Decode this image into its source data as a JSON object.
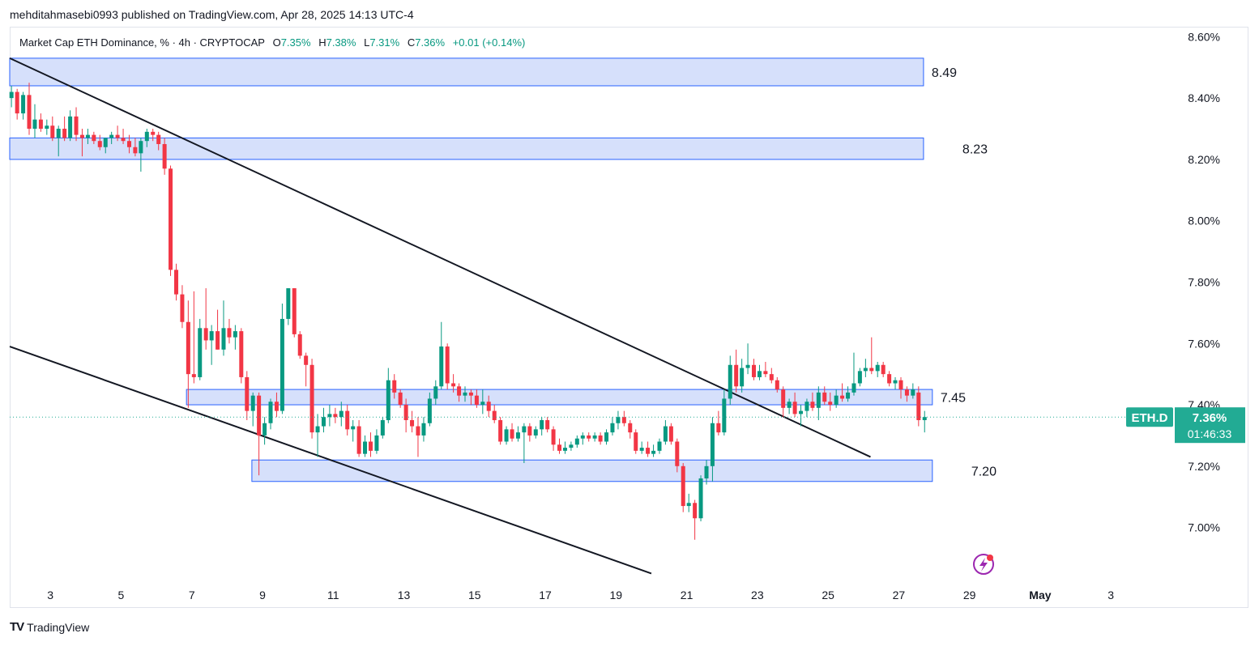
{
  "header": {
    "published": "mehditahmasebi0993 published on TradingView.com, Apr 28, 2025 14:13 UTC-4"
  },
  "legend": {
    "title": "Market Cap ETH Dominance, % · 4h · CRYPTOCAP",
    "o_label": "O",
    "o_value": "7.35%",
    "h_label": "H",
    "h_value": "7.38%",
    "l_label": "L",
    "l_value": "7.31%",
    "c_label": "C",
    "c_value": "7.36%",
    "change": "+0.01 (+0.14%)"
  },
  "price_tag": {
    "symbol": "ETH.D",
    "price": "7.36%",
    "countdown": "01:46:33"
  },
  "footer": {
    "brand": "TradingView",
    "logo": "TV"
  },
  "colors": {
    "up": "#089981",
    "down": "#f23645",
    "zone_fill": "#d6e0fb",
    "zone_border": "#2962ff",
    "trendline": "#131722",
    "tag": "#22ab94"
  },
  "icons": {
    "bottom_right": "lightning-icon"
  },
  "chart_data": {
    "type": "candlestick",
    "title": "Market Cap ETH Dominance, % · 4h · CRYPTOCAP",
    "timeframe": "4h",
    "y_unit": "%",
    "ylim": [
      6.83,
      8.63
    ],
    "y_ticks": [
      "8.60%",
      "8.40%",
      "8.20%",
      "8.00%",
      "7.80%",
      "7.60%",
      "7.40%",
      "7.20%",
      "7.00%"
    ],
    "y_tick_values": [
      8.6,
      8.4,
      8.2,
      8.0,
      7.8,
      7.6,
      7.4,
      7.2,
      7.0
    ],
    "x_ticks": [
      "3",
      "5",
      "7",
      "9",
      "11",
      "13",
      "15",
      "17",
      "19",
      "21",
      "23",
      "25",
      "27",
      "29",
      "May",
      "3"
    ],
    "x_tick_days": [
      3,
      5,
      7,
      9,
      11,
      13,
      15,
      17,
      19,
      21,
      23,
      25,
      27,
      29,
      31,
      33
    ],
    "xlim_days": [
      1.85,
      34.6
    ],
    "zones": [
      {
        "label": "8.49",
        "top": 8.53,
        "bottom": 8.44,
        "x_start_day": 1.85,
        "x_end_day": 27.7
      },
      {
        "label": "8.23",
        "top": 8.27,
        "bottom": 8.2,
        "x_start_day": 1.85,
        "x_end_day": 27.7
      },
      {
        "label": "7.45",
        "top": 7.45,
        "bottom": 7.4,
        "x_start_day": 6.85,
        "x_end_day": 27.95
      },
      {
        "label": "7.20",
        "top": 7.22,
        "bottom": 7.15,
        "x_start_day": 8.7,
        "x_end_day": 27.95
      }
    ],
    "trendlines": [
      {
        "start_day": 1.85,
        "start_value": 8.53,
        "end_day": 26.2,
        "end_value": 7.23
      },
      {
        "start_day": 1.85,
        "start_value": 7.59,
        "end_day": 20.0,
        "end_value": 6.85
      }
    ],
    "current_price": 7.36,
    "candles": [
      {
        "d": 1.9,
        "o": 8.4,
        "h": 8.44,
        "l": 8.37,
        "c": 8.42
      },
      {
        "d": 2.06,
        "o": 8.42,
        "h": 8.43,
        "l": 8.33,
        "c": 8.35
      },
      {
        "d": 2.23,
        "o": 8.35,
        "h": 8.42,
        "l": 8.33,
        "c": 8.41
      },
      {
        "d": 2.4,
        "o": 8.41,
        "h": 8.45,
        "l": 8.28,
        "c": 8.3
      },
      {
        "d": 2.56,
        "o": 8.3,
        "h": 8.38,
        "l": 8.27,
        "c": 8.33
      },
      {
        "d": 2.73,
        "o": 8.33,
        "h": 8.35,
        "l": 8.29,
        "c": 8.3
      },
      {
        "d": 2.9,
        "o": 8.3,
        "h": 8.33,
        "l": 8.28,
        "c": 8.31
      },
      {
        "d": 3.06,
        "o": 8.31,
        "h": 8.34,
        "l": 8.26,
        "c": 8.27
      },
      {
        "d": 3.23,
        "o": 8.27,
        "h": 8.31,
        "l": 8.21,
        "c": 8.3
      },
      {
        "d": 3.4,
        "o": 8.3,
        "h": 8.34,
        "l": 8.26,
        "c": 8.27
      },
      {
        "d": 3.56,
        "o": 8.27,
        "h": 8.36,
        "l": 8.26,
        "c": 8.34
      },
      {
        "d": 3.73,
        "o": 8.34,
        "h": 8.37,
        "l": 8.26,
        "c": 8.28
      },
      {
        "d": 3.9,
        "o": 8.28,
        "h": 8.3,
        "l": 8.21,
        "c": 8.27
      },
      {
        "d": 4.06,
        "o": 8.27,
        "h": 8.3,
        "l": 8.25,
        "c": 8.28
      },
      {
        "d": 4.23,
        "o": 8.28,
        "h": 8.29,
        "l": 8.25,
        "c": 8.26
      },
      {
        "d": 4.4,
        "o": 8.26,
        "h": 8.28,
        "l": 8.23,
        "c": 8.24
      },
      {
        "d": 4.56,
        "o": 8.24,
        "h": 8.27,
        "l": 8.22,
        "c": 8.27
      },
      {
        "d": 4.73,
        "o": 8.27,
        "h": 8.29,
        "l": 8.25,
        "c": 8.28
      },
      {
        "d": 4.9,
        "o": 8.28,
        "h": 8.31,
        "l": 8.26,
        "c": 8.27
      },
      {
        "d": 5.06,
        "o": 8.27,
        "h": 8.3,
        "l": 8.25,
        "c": 8.26
      },
      {
        "d": 5.23,
        "o": 8.26,
        "h": 8.28,
        "l": 8.22,
        "c": 8.24
      },
      {
        "d": 5.4,
        "o": 8.24,
        "h": 8.27,
        "l": 8.21,
        "c": 8.22
      },
      {
        "d": 5.56,
        "o": 8.22,
        "h": 8.27,
        "l": 8.16,
        "c": 8.26
      },
      {
        "d": 5.73,
        "o": 8.26,
        "h": 8.3,
        "l": 8.24,
        "c": 8.29
      },
      {
        "d": 5.9,
        "o": 8.29,
        "h": 8.3,
        "l": 8.26,
        "c": 8.28
      },
      {
        "d": 6.06,
        "o": 8.28,
        "h": 8.29,
        "l": 8.23,
        "c": 8.25
      },
      {
        "d": 6.23,
        "o": 8.25,
        "h": 8.27,
        "l": 8.15,
        "c": 8.17
      },
      {
        "d": 6.4,
        "o": 8.17,
        "h": 8.18,
        "l": 7.82,
        "c": 7.84
      },
      {
        "d": 6.56,
        "o": 7.84,
        "h": 7.86,
        "l": 7.74,
        "c": 7.76
      },
      {
        "d": 6.73,
        "o": 7.76,
        "h": 7.79,
        "l": 7.65,
        "c": 7.67
      },
      {
        "d": 6.9,
        "o": 7.67,
        "h": 7.74,
        "l": 7.39,
        "c": 7.5
      },
      {
        "d": 7.06,
        "o": 7.5,
        "h": 7.77,
        "l": 7.47,
        "c": 7.49
      },
      {
        "d": 7.23,
        "o": 7.49,
        "h": 7.68,
        "l": 7.48,
        "c": 7.65
      },
      {
        "d": 7.4,
        "o": 7.65,
        "h": 7.78,
        "l": 7.58,
        "c": 7.61
      },
      {
        "d": 7.56,
        "o": 7.61,
        "h": 7.66,
        "l": 7.53,
        "c": 7.64
      },
      {
        "d": 7.73,
        "o": 7.64,
        "h": 7.71,
        "l": 7.58,
        "c": 7.58
      },
      {
        "d": 7.9,
        "o": 7.58,
        "h": 7.74,
        "l": 7.56,
        "c": 7.65
      },
      {
        "d": 8.06,
        "o": 7.65,
        "h": 7.68,
        "l": 7.6,
        "c": 7.62
      },
      {
        "d": 8.23,
        "o": 7.62,
        "h": 7.66,
        "l": 7.58,
        "c": 7.64
      },
      {
        "d": 8.4,
        "o": 7.64,
        "h": 7.65,
        "l": 7.47,
        "c": 7.49
      },
      {
        "d": 8.56,
        "o": 7.49,
        "h": 7.51,
        "l": 7.35,
        "c": 7.38
      },
      {
        "d": 8.73,
        "o": 7.38,
        "h": 7.44,
        "l": 7.33,
        "c": 7.43
      },
      {
        "d": 8.9,
        "o": 7.43,
        "h": 7.44,
        "l": 7.17,
        "c": 7.3
      },
      {
        "d": 9.06,
        "o": 7.3,
        "h": 7.36,
        "l": 7.27,
        "c": 7.34
      },
      {
        "d": 9.23,
        "o": 7.34,
        "h": 7.42,
        "l": 7.32,
        "c": 7.41
      },
      {
        "d": 9.4,
        "o": 7.41,
        "h": 7.44,
        "l": 7.36,
        "c": 7.38
      },
      {
        "d": 9.56,
        "o": 7.38,
        "h": 7.73,
        "l": 7.37,
        "c": 7.68
      },
      {
        "d": 9.73,
        "o": 7.68,
        "h": 7.78,
        "l": 7.66,
        "c": 7.78
      },
      {
        "d": 9.9,
        "o": 7.78,
        "h": 7.78,
        "l": 7.62,
        "c": 7.63
      },
      {
        "d": 10.06,
        "o": 7.63,
        "h": 7.64,
        "l": 7.55,
        "c": 7.56
      },
      {
        "d": 10.23,
        "o": 7.56,
        "h": 7.57,
        "l": 7.46,
        "c": 7.53
      },
      {
        "d": 10.4,
        "o": 7.53,
        "h": 7.55,
        "l": 7.29,
        "c": 7.31
      },
      {
        "d": 10.56,
        "o": 7.31,
        "h": 7.37,
        "l": 7.23,
        "c": 7.33
      },
      {
        "d": 10.73,
        "o": 7.33,
        "h": 7.39,
        "l": 7.31,
        "c": 7.36
      },
      {
        "d": 10.9,
        "o": 7.36,
        "h": 7.4,
        "l": 7.33,
        "c": 7.37
      },
      {
        "d": 11.06,
        "o": 7.37,
        "h": 7.39,
        "l": 7.34,
        "c": 7.36
      },
      {
        "d": 11.23,
        "o": 7.36,
        "h": 7.41,
        "l": 7.33,
        "c": 7.38
      },
      {
        "d": 11.4,
        "o": 7.38,
        "h": 7.4,
        "l": 7.3,
        "c": 7.32
      },
      {
        "d": 11.56,
        "o": 7.32,
        "h": 7.35,
        "l": 7.28,
        "c": 7.33
      },
      {
        "d": 11.73,
        "o": 7.33,
        "h": 7.35,
        "l": 7.23,
        "c": 7.24
      },
      {
        "d": 11.9,
        "o": 7.24,
        "h": 7.3,
        "l": 7.23,
        "c": 7.28
      },
      {
        "d": 12.06,
        "o": 7.28,
        "h": 7.31,
        "l": 7.23,
        "c": 7.25
      },
      {
        "d": 12.23,
        "o": 7.25,
        "h": 7.32,
        "l": 7.24,
        "c": 7.3
      },
      {
        "d": 12.4,
        "o": 7.3,
        "h": 7.36,
        "l": 7.29,
        "c": 7.35
      },
      {
        "d": 12.56,
        "o": 7.35,
        "h": 7.52,
        "l": 7.34,
        "c": 7.48
      },
      {
        "d": 12.73,
        "o": 7.48,
        "h": 7.5,
        "l": 7.42,
        "c": 7.44
      },
      {
        "d": 12.9,
        "o": 7.44,
        "h": 7.45,
        "l": 7.39,
        "c": 7.4
      },
      {
        "d": 13.06,
        "o": 7.4,
        "h": 7.42,
        "l": 7.31,
        "c": 7.35
      },
      {
        "d": 13.23,
        "o": 7.35,
        "h": 7.38,
        "l": 7.31,
        "c": 7.33
      },
      {
        "d": 13.4,
        "o": 7.33,
        "h": 7.36,
        "l": 7.23,
        "c": 7.3
      },
      {
        "d": 13.56,
        "o": 7.3,
        "h": 7.36,
        "l": 7.28,
        "c": 7.34
      },
      {
        "d": 13.73,
        "o": 7.34,
        "h": 7.44,
        "l": 7.33,
        "c": 7.42
      },
      {
        "d": 13.9,
        "o": 7.42,
        "h": 7.48,
        "l": 7.4,
        "c": 7.46
      },
      {
        "d": 14.06,
        "o": 7.46,
        "h": 7.67,
        "l": 7.45,
        "c": 7.59
      },
      {
        "d": 14.23,
        "o": 7.59,
        "h": 7.6,
        "l": 7.45,
        "c": 7.47
      },
      {
        "d": 14.4,
        "o": 7.47,
        "h": 7.5,
        "l": 7.44,
        "c": 7.46
      },
      {
        "d": 14.56,
        "o": 7.46,
        "h": 7.47,
        "l": 7.41,
        "c": 7.43
      },
      {
        "d": 14.73,
        "o": 7.43,
        "h": 7.46,
        "l": 7.41,
        "c": 7.44
      },
      {
        "d": 14.9,
        "o": 7.44,
        "h": 7.45,
        "l": 7.4,
        "c": 7.43
      },
      {
        "d": 15.06,
        "o": 7.43,
        "h": 7.45,
        "l": 7.39,
        "c": 7.4
      },
      {
        "d": 15.23,
        "o": 7.4,
        "h": 7.45,
        "l": 7.37,
        "c": 7.41
      },
      {
        "d": 15.4,
        "o": 7.41,
        "h": 7.43,
        "l": 7.36,
        "c": 7.38
      },
      {
        "d": 15.56,
        "o": 7.38,
        "h": 7.4,
        "l": 7.34,
        "c": 7.35
      },
      {
        "d": 15.73,
        "o": 7.35,
        "h": 7.36,
        "l": 7.27,
        "c": 7.28
      },
      {
        "d": 15.9,
        "o": 7.28,
        "h": 7.33,
        "l": 7.27,
        "c": 7.32
      },
      {
        "d": 16.06,
        "o": 7.32,
        "h": 7.34,
        "l": 7.28,
        "c": 7.29
      },
      {
        "d": 16.23,
        "o": 7.29,
        "h": 7.33,
        "l": 7.28,
        "c": 7.31
      },
      {
        "d": 16.4,
        "o": 7.31,
        "h": 7.34,
        "l": 7.21,
        "c": 7.33
      },
      {
        "d": 16.56,
        "o": 7.33,
        "h": 7.34,
        "l": 7.28,
        "c": 7.3
      },
      {
        "d": 16.73,
        "o": 7.3,
        "h": 7.33,
        "l": 7.29,
        "c": 7.32
      },
      {
        "d": 16.9,
        "o": 7.32,
        "h": 7.36,
        "l": 7.3,
        "c": 7.35
      },
      {
        "d": 17.06,
        "o": 7.35,
        "h": 7.36,
        "l": 7.31,
        "c": 7.32
      },
      {
        "d": 17.23,
        "o": 7.32,
        "h": 7.33,
        "l": 7.25,
        "c": 7.27
      },
      {
        "d": 17.4,
        "o": 7.27,
        "h": 7.29,
        "l": 7.24,
        "c": 7.25
      },
      {
        "d": 17.56,
        "o": 7.25,
        "h": 7.28,
        "l": 7.24,
        "c": 7.26
      },
      {
        "d": 17.73,
        "o": 7.26,
        "h": 7.28,
        "l": 7.25,
        "c": 7.27
      },
      {
        "d": 17.9,
        "o": 7.27,
        "h": 7.3,
        "l": 7.26,
        "c": 7.29
      },
      {
        "d": 18.06,
        "o": 7.29,
        "h": 7.31,
        "l": 7.27,
        "c": 7.3
      },
      {
        "d": 18.23,
        "o": 7.3,
        "h": 7.31,
        "l": 7.28,
        "c": 7.29
      },
      {
        "d": 18.4,
        "o": 7.29,
        "h": 7.31,
        "l": 7.28,
        "c": 7.3
      },
      {
        "d": 18.56,
        "o": 7.3,
        "h": 7.31,
        "l": 7.27,
        "c": 7.28
      },
      {
        "d": 18.73,
        "o": 7.28,
        "h": 7.32,
        "l": 7.27,
        "c": 7.31
      },
      {
        "d": 18.9,
        "o": 7.31,
        "h": 7.36,
        "l": 7.3,
        "c": 7.34
      },
      {
        "d": 19.06,
        "o": 7.34,
        "h": 7.38,
        "l": 7.32,
        "c": 7.36
      },
      {
        "d": 19.23,
        "o": 7.36,
        "h": 7.38,
        "l": 7.33,
        "c": 7.34
      },
      {
        "d": 19.4,
        "o": 7.34,
        "h": 7.35,
        "l": 7.29,
        "c": 7.31
      },
      {
        "d": 19.56,
        "o": 7.31,
        "h": 7.32,
        "l": 7.24,
        "c": 7.25
      },
      {
        "d": 19.73,
        "o": 7.25,
        "h": 7.28,
        "l": 7.24,
        "c": 7.26
      },
      {
        "d": 19.9,
        "o": 7.26,
        "h": 7.28,
        "l": 7.23,
        "c": 7.24
      },
      {
        "d": 20.06,
        "o": 7.24,
        "h": 7.27,
        "l": 7.23,
        "c": 7.25
      },
      {
        "d": 20.23,
        "o": 7.25,
        "h": 7.29,
        "l": 7.24,
        "c": 7.28
      },
      {
        "d": 20.4,
        "o": 7.28,
        "h": 7.35,
        "l": 7.27,
        "c": 7.33
      },
      {
        "d": 20.56,
        "o": 7.33,
        "h": 7.34,
        "l": 7.27,
        "c": 7.28
      },
      {
        "d": 20.73,
        "o": 7.28,
        "h": 7.29,
        "l": 7.18,
        "c": 7.2
      },
      {
        "d": 20.9,
        "o": 7.2,
        "h": 7.21,
        "l": 7.05,
        "c": 7.07
      },
      {
        "d": 21.06,
        "o": 7.07,
        "h": 7.11,
        "l": 7.05,
        "c": 7.08
      },
      {
        "d": 21.23,
        "o": 7.08,
        "h": 7.09,
        "l": 6.96,
        "c": 7.03
      },
      {
        "d": 21.4,
        "o": 7.03,
        "h": 7.17,
        "l": 7.02,
        "c": 7.16
      },
      {
        "d": 21.56,
        "o": 7.16,
        "h": 7.22,
        "l": 7.14,
        "c": 7.2
      },
      {
        "d": 21.73,
        "o": 7.2,
        "h": 7.36,
        "l": 7.15,
        "c": 7.34
      },
      {
        "d": 21.9,
        "o": 7.34,
        "h": 7.38,
        "l": 7.3,
        "c": 7.31
      },
      {
        "d": 22.06,
        "o": 7.31,
        "h": 7.45,
        "l": 7.3,
        "c": 7.42
      },
      {
        "d": 22.23,
        "o": 7.42,
        "h": 7.56,
        "l": 7.4,
        "c": 7.53
      },
      {
        "d": 22.4,
        "o": 7.53,
        "h": 7.58,
        "l": 7.44,
        "c": 7.46
      },
      {
        "d": 22.56,
        "o": 7.46,
        "h": 7.55,
        "l": 7.44,
        "c": 7.52
      },
      {
        "d": 22.73,
        "o": 7.52,
        "h": 7.6,
        "l": 7.5,
        "c": 7.53
      },
      {
        "d": 22.9,
        "o": 7.53,
        "h": 7.55,
        "l": 7.48,
        "c": 7.49
      },
      {
        "d": 23.06,
        "o": 7.49,
        "h": 7.53,
        "l": 7.48,
        "c": 7.51
      },
      {
        "d": 23.23,
        "o": 7.51,
        "h": 7.54,
        "l": 7.49,
        "c": 7.5
      },
      {
        "d": 23.4,
        "o": 7.5,
        "h": 7.52,
        "l": 7.47,
        "c": 7.48
      },
      {
        "d": 23.56,
        "o": 7.48,
        "h": 7.49,
        "l": 7.44,
        "c": 7.45
      },
      {
        "d": 23.73,
        "o": 7.45,
        "h": 7.46,
        "l": 7.36,
        "c": 7.39
      },
      {
        "d": 23.9,
        "o": 7.39,
        "h": 7.42,
        "l": 7.37,
        "c": 7.41
      },
      {
        "d": 24.06,
        "o": 7.41,
        "h": 7.44,
        "l": 7.36,
        "c": 7.37
      },
      {
        "d": 24.23,
        "o": 7.37,
        "h": 7.4,
        "l": 7.33,
        "c": 7.38
      },
      {
        "d": 24.4,
        "o": 7.38,
        "h": 7.42,
        "l": 7.36,
        "c": 7.41
      },
      {
        "d": 24.56,
        "o": 7.41,
        "h": 7.44,
        "l": 7.38,
        "c": 7.39
      },
      {
        "d": 24.73,
        "o": 7.39,
        "h": 7.46,
        "l": 7.35,
        "c": 7.44
      },
      {
        "d": 24.9,
        "o": 7.44,
        "h": 7.46,
        "l": 7.4,
        "c": 7.41
      },
      {
        "d": 25.06,
        "o": 7.41,
        "h": 7.44,
        "l": 7.38,
        "c": 7.4
      },
      {
        "d": 25.23,
        "o": 7.4,
        "h": 7.45,
        "l": 7.39,
        "c": 7.43
      },
      {
        "d": 25.4,
        "o": 7.43,
        "h": 7.47,
        "l": 7.41,
        "c": 7.42
      },
      {
        "d": 25.56,
        "o": 7.42,
        "h": 7.46,
        "l": 7.41,
        "c": 7.44
      },
      {
        "d": 25.73,
        "o": 7.44,
        "h": 7.57,
        "l": 7.43,
        "c": 7.47
      },
      {
        "d": 25.9,
        "o": 7.47,
        "h": 7.52,
        "l": 7.46,
        "c": 7.51
      },
      {
        "d": 26.06,
        "o": 7.51,
        "h": 7.55,
        "l": 7.49,
        "c": 7.52
      },
      {
        "d": 26.23,
        "o": 7.52,
        "h": 7.62,
        "l": 7.5,
        "c": 7.51
      },
      {
        "d": 26.4,
        "o": 7.51,
        "h": 7.54,
        "l": 7.49,
        "c": 7.53
      },
      {
        "d": 26.56,
        "o": 7.53,
        "h": 7.54,
        "l": 7.49,
        "c": 7.5
      },
      {
        "d": 26.73,
        "o": 7.5,
        "h": 7.51,
        "l": 7.46,
        "c": 7.47
      },
      {
        "d": 26.9,
        "o": 7.47,
        "h": 7.49,
        "l": 7.45,
        "c": 7.48
      },
      {
        "d": 27.06,
        "o": 7.48,
        "h": 7.49,
        "l": 7.42,
        "c": 7.45
      },
      {
        "d": 27.23,
        "o": 7.45,
        "h": 7.46,
        "l": 7.41,
        "c": 7.43
      },
      {
        "d": 27.4,
        "o": 7.43,
        "h": 7.47,
        "l": 7.42,
        "c": 7.45
      },
      {
        "d": 27.56,
        "o": 7.44,
        "h": 7.46,
        "l": 7.33,
        "c": 7.35
      },
      {
        "d": 27.73,
        "o": 7.35,
        "h": 7.38,
        "l": 7.31,
        "c": 7.36
      }
    ]
  }
}
